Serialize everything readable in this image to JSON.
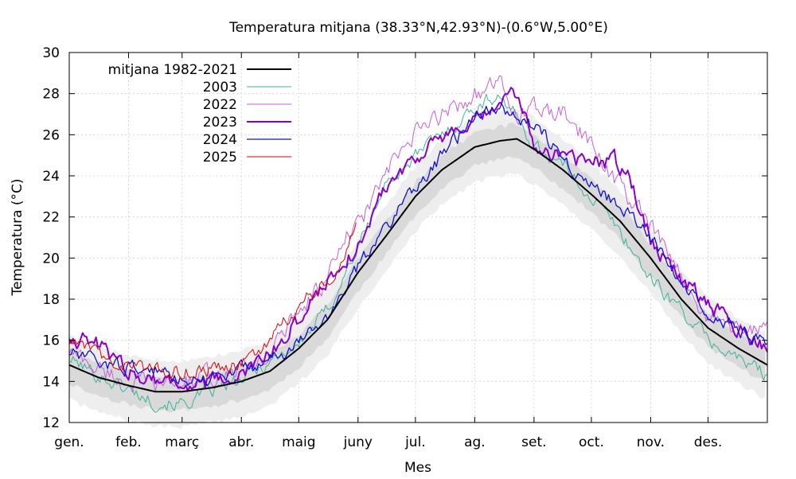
{
  "chart_data": {
    "type": "line",
    "title": "Temperatura mitjana (38.33°N,42.93°N)-(0.6°W,5.00°E)",
    "xlabel": "Mes",
    "ylabel": "Temperatura (°C)",
    "ylim": [
      12,
      30
    ],
    "yticks": [
      12,
      14,
      16,
      18,
      20,
      22,
      24,
      26,
      28,
      30
    ],
    "xlim": [
      0,
      365
    ],
    "month_ticks": [
      {
        "label": "gen.",
        "day": 0
      },
      {
        "label": "feb.",
        "day": 31
      },
      {
        "label": "març",
        "day": 59
      },
      {
        "label": "abr.",
        "day": 90
      },
      {
        "label": "maig",
        "day": 120
      },
      {
        "label": "juny",
        "day": 151
      },
      {
        "label": "jul.",
        "day": 181
      },
      {
        "label": "ag.",
        "day": 212
      },
      {
        "label": "set.",
        "day": 243
      },
      {
        "label": "oct.",
        "day": 273
      },
      {
        "label": "nov.",
        "day": 304
      },
      {
        "label": "des.",
        "day": 334
      }
    ],
    "grid": true,
    "legend_position": "top-left",
    "climatology": {
      "name": "mitjana 1982-2021",
      "color": "#000000",
      "days": [
        0,
        15,
        31,
        45,
        59,
        75,
        90,
        105,
        120,
        135,
        151,
        165,
        181,
        195,
        212,
        225,
        234,
        243,
        258,
        273,
        288,
        304,
        320,
        334,
        350,
        365
      ],
      "values": [
        14.8,
        14.2,
        13.8,
        13.5,
        13.5,
        13.7,
        14.0,
        14.5,
        15.6,
        17.0,
        19.3,
        21.0,
        23.0,
        24.3,
        25.4,
        25.7,
        25.8,
        25.3,
        24.3,
        23.1,
        21.8,
        20.0,
        18.0,
        16.6,
        15.6,
        14.8
      ],
      "band_inner_half_width": 0.7,
      "band_outer_half_width": 1.5,
      "band_inner_color": "#d9d9d9",
      "band_outer_color": "#eeeeee"
    },
    "series": [
      {
        "name": "2003",
        "color": "#3cb398",
        "width": 1,
        "days": [
          0,
          15,
          31,
          45,
          59,
          75,
          90,
          105,
          120,
          135,
          151,
          165,
          181,
          195,
          212,
          225,
          234,
          243,
          258,
          273,
          288,
          304,
          320,
          334,
          350,
          365
        ],
        "values": [
          15.1,
          14.3,
          13.6,
          13.0,
          12.9,
          13.5,
          14.0,
          15.0,
          15.8,
          17.5,
          20.5,
          23.5,
          25.0,
          26.0,
          27.3,
          28.0,
          26.8,
          25.5,
          24.5,
          23.0,
          21.3,
          19.0,
          17.5,
          16.0,
          15.1,
          14.3
        ],
        "noise": 0.3
      },
      {
        "name": "2022",
        "color": "#c65ed8",
        "width": 1,
        "days": [
          0,
          15,
          31,
          45,
          59,
          75,
          90,
          105,
          120,
          135,
          145,
          151,
          165,
          181,
          195,
          212,
          225,
          234,
          243,
          258,
          273,
          288,
          304,
          320,
          334,
          350,
          365
        ],
        "values": [
          15.5,
          14.6,
          14.0,
          13.8,
          13.9,
          14.3,
          14.6,
          15.3,
          17.5,
          19.0,
          21.0,
          21.5,
          24.0,
          26.0,
          27.0,
          28.0,
          28.4,
          27.0,
          27.2,
          27.0,
          25.5,
          23.5,
          21.5,
          19.0,
          17.2,
          16.6,
          16.4
        ],
        "noise": 0.4
      },
      {
        "name": "2023",
        "color": "#8b00c9",
        "width": 2,
        "days": [
          0,
          15,
          31,
          45,
          59,
          75,
          90,
          105,
          120,
          135,
          151,
          165,
          181,
          195,
          212,
          225,
          234,
          243,
          258,
          273,
          285,
          295,
          304,
          320,
          334,
          350,
          365
        ],
        "values": [
          16.2,
          15.8,
          14.5,
          14.2,
          13.8,
          13.9,
          14.3,
          15.3,
          17.0,
          19.0,
          20.5,
          23.5,
          25.0,
          25.8,
          26.5,
          27.5,
          28.0,
          25.5,
          25.0,
          24.6,
          24.8,
          23.5,
          21.0,
          19.0,
          17.8,
          16.5,
          15.6
        ],
        "noise": 0.35
      },
      {
        "name": "2024",
        "color": "#1010d0",
        "width": 1.3,
        "days": [
          0,
          15,
          31,
          45,
          59,
          75,
          90,
          105,
          120,
          135,
          151,
          165,
          181,
          195,
          212,
          225,
          234,
          243,
          258,
          273,
          288,
          304,
          320,
          334,
          350,
          365
        ],
        "values": [
          15.4,
          14.9,
          14.7,
          14.5,
          14.2,
          14.2,
          14.6,
          15.0,
          15.8,
          17.2,
          19.5,
          21.5,
          23.5,
          25.0,
          26.8,
          27.5,
          26.7,
          26.5,
          25.0,
          23.5,
          22.5,
          21.0,
          19.0,
          17.5,
          16.5,
          15.8
        ],
        "noise": 0.3
      },
      {
        "name": "2025",
        "color": "#e00000",
        "width": 1,
        "days": [
          0,
          10,
          20,
          31,
          45,
          59,
          75,
          90,
          100,
          110,
          120,
          130,
          140,
          150
        ],
        "values": [
          15.9,
          15.6,
          15.0,
          14.8,
          14.5,
          14.5,
          14.6,
          14.9,
          15.4,
          16.5,
          17.8,
          18.5,
          19.5,
          21.7
        ],
        "noise": 0.3
      }
    ]
  }
}
